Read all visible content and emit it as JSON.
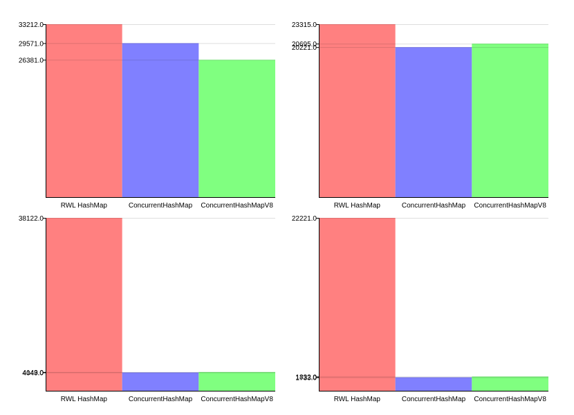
{
  "chart_data": [
    {
      "type": "bar",
      "categories": [
        "RWL HashMap",
        "ConcurrentHashMap",
        "ConcurrentHashMapV8"
      ],
      "values": [
        33212.0,
        29571.0,
        26381.0
      ],
      "colors": [
        "#ff8080",
        "#8080ff",
        "#80ff80"
      ],
      "y_tick_labels": [
        "33212.0",
        "29571.0",
        "26381.0"
      ],
      "ylim": [
        0,
        33212.0
      ],
      "grid": true
    },
    {
      "type": "bar",
      "categories": [
        "RWL HashMap",
        "ConcurrentHashMap",
        "ConcurrentHashMapV8"
      ],
      "values": [
        23315.0,
        20221.0,
        20695.0
      ],
      "colors": [
        "#ff8080",
        "#8080ff",
        "#80ff80"
      ],
      "y_tick_labels": [
        "23315.0",
        "20221.0",
        "20695.0"
      ],
      "ylim": [
        0,
        23315.0
      ],
      "grid": true
    },
    {
      "type": "bar",
      "categories": [
        "RWL HashMap",
        "ConcurrentHashMap",
        "ConcurrentHashMapV8"
      ],
      "values": [
        38122.0,
        4049.0,
        4143.0
      ],
      "colors": [
        "#ff8080",
        "#8080ff",
        "#80ff80"
      ],
      "y_tick_labels": [
        "38122.0",
        "4049.0",
        "4143.0"
      ],
      "ylim": [
        0,
        38122.0
      ],
      "grid": true
    },
    {
      "type": "bar",
      "categories": [
        "RWL HashMap",
        "ConcurrentHashMap",
        "ConcurrentHashMapV8"
      ],
      "values": [
        22221.0,
        1733.0,
        1832.0
      ],
      "colors": [
        "#ff8080",
        "#8080ff",
        "#80ff80"
      ],
      "y_tick_labels": [
        "22221.0",
        "1733.0",
        "1832.0"
      ],
      "ylim": [
        0,
        22221.0
      ],
      "grid": true
    }
  ]
}
